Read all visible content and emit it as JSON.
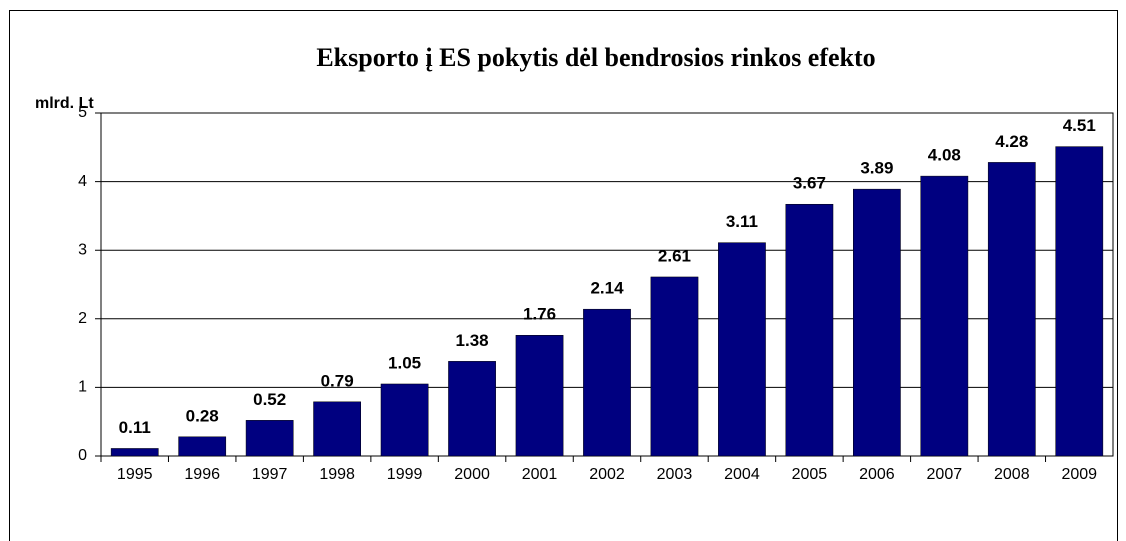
{
  "chart_data": {
    "type": "bar",
    "title": "Eksporto į ES pokytis dėl bendrosios rinkos efekto",
    "y_label": "mlrd. Lt",
    "categories": [
      "1995",
      "1996",
      "1997",
      "1998",
      "1999",
      "2000",
      "2001",
      "2002",
      "2003",
      "2004",
      "2005",
      "2006",
      "2007",
      "2008",
      "2009"
    ],
    "values": [
      0.11,
      0.28,
      0.52,
      0.79,
      1.05,
      1.38,
      1.76,
      2.14,
      2.61,
      3.11,
      3.67,
      3.89,
      4.08,
      4.28,
      4.51
    ],
    "color": "#000080",
    "ylim": [
      0,
      5
    ],
    "yticks": [
      0,
      1,
      2,
      3,
      4,
      5
    ],
    "grid": true
  }
}
